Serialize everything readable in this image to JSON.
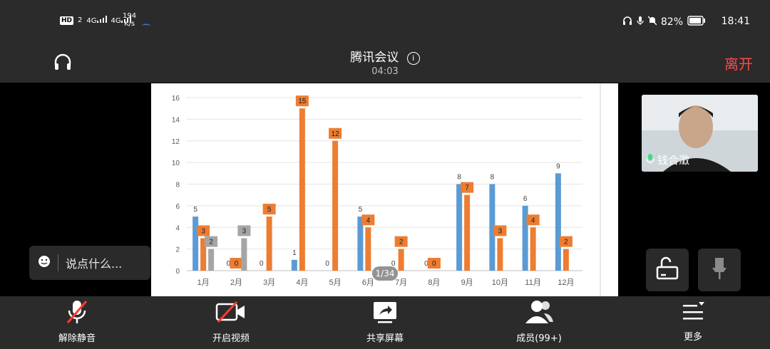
{
  "status": {
    "hd": "HD",
    "sim": "2",
    "net1": "4G",
    "net2": "4G",
    "speed_value": "194",
    "speed_unit": "K/s",
    "battery": "82%",
    "time": "18:41"
  },
  "meeting": {
    "title": "腾讯会议",
    "duration": "04:03",
    "leave_label": "离开"
  },
  "chat": {
    "placeholder": "说点什么..."
  },
  "participant": {
    "name": "钱合澂"
  },
  "page_indicator": "1/34",
  "toolbar": {
    "mute_label": "解除静音",
    "video_label": "开启视频",
    "share_label": "共享屏幕",
    "members_label": "成员(99+)",
    "more_label": "更多"
  },
  "chart_data": {
    "type": "bar",
    "categories": [
      "1月",
      "2月",
      "3月",
      "4月",
      "5月",
      "6月",
      "7月",
      "8月",
      "9月",
      "10月",
      "11月",
      "12月"
    ],
    "series": [
      {
        "color": "#5b9bd5",
        "values": [
          5,
          0,
          0,
          1,
          0,
          5,
          0,
          0,
          8,
          8,
          6,
          9
        ]
      },
      {
        "color": "#ed7d31",
        "values": [
          3,
          0,
          5,
          15,
          12,
          4,
          2,
          0,
          7,
          3,
          4,
          2
        ]
      },
      {
        "color": "#a5a5a5",
        "values": [
          2,
          3,
          null,
          null,
          null,
          null,
          null,
          null,
          null,
          null,
          null,
          null
        ]
      }
    ],
    "ylim": [
      0,
      16
    ],
    "yticks": [
      0,
      2,
      4,
      6,
      8,
      10,
      12,
      14,
      16
    ],
    "grid": true
  }
}
